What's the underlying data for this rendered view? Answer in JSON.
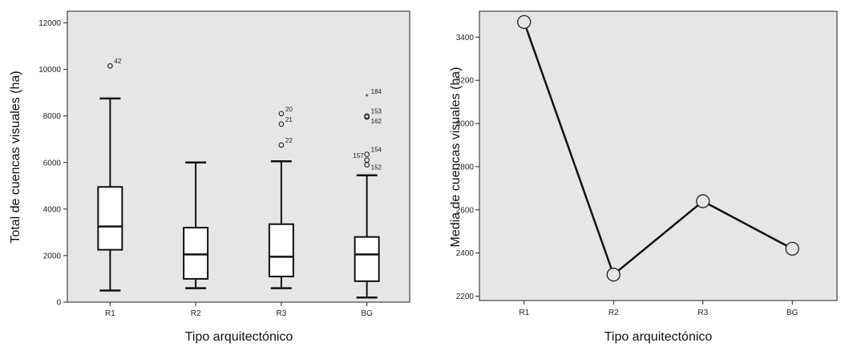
{
  "chart_data": [
    {
      "type": "box",
      "xlabel": "Tipo arquitectónico",
      "ylabel": "Total de cuencas visuales (ha)",
      "ylim": [
        0,
        12500
      ],
      "yticks": [
        0,
        2000,
        4000,
        6000,
        8000,
        10000,
        12000
      ],
      "background": "#e6e6e6",
      "categories": [
        "R1",
        "R2",
        "R3",
        "BG"
      ],
      "boxes": [
        {
          "category": "R1",
          "min": 500,
          "q1": 2250,
          "median": 3250,
          "q3": 4950,
          "max": 8750,
          "outliers": [
            {
              "value": 10150,
              "label": "42",
              "marker": "circle"
            }
          ]
        },
        {
          "category": "R2",
          "min": 600,
          "q1": 1000,
          "median": 2050,
          "q3": 3200,
          "max": 6000,
          "outliers": []
        },
        {
          "category": "R3",
          "min": 600,
          "q1": 1100,
          "median": 1950,
          "q3": 3350,
          "max": 6050,
          "outliers": [
            {
              "value": 8100,
              "label": "20",
              "marker": "circle"
            },
            {
              "value": 7650,
              "label": "21",
              "marker": "circle"
            },
            {
              "value": 6750,
              "label": "22",
              "marker": "circle"
            }
          ]
        },
        {
          "category": "BG",
          "min": 200,
          "q1": 900,
          "median": 2050,
          "q3": 2800,
          "max": 5450,
          "outliers": [
            {
              "value": 8850,
              "label": "184",
              "marker": "star"
            },
            {
              "value": 8000,
              "label": "153",
              "marker": "circle"
            },
            {
              "value": 7950,
              "label": "162",
              "marker": "circle"
            },
            {
              "value": 6350,
              "label": "154",
              "marker": "circle"
            },
            {
              "value": 6100,
              "label": "157",
              "marker": "circle"
            },
            {
              "value": 5900,
              "label": "152",
              "marker": "circle"
            }
          ]
        }
      ]
    },
    {
      "type": "line",
      "xlabel": "Tipo arquitectónico",
      "ylabel": "Media de cuencas visuales (ha)",
      "ylim": [
        2180,
        3520
      ],
      "yticks": [
        2200,
        2400,
        2600,
        2800,
        3000,
        3200,
        3400
      ],
      "background": "#e6e6e6",
      "categories": [
        "R1",
        "R2",
        "R3",
        "BG"
      ],
      "series": [
        {
          "values": [
            3470,
            2300,
            2640,
            2420
          ]
        }
      ]
    }
  ]
}
